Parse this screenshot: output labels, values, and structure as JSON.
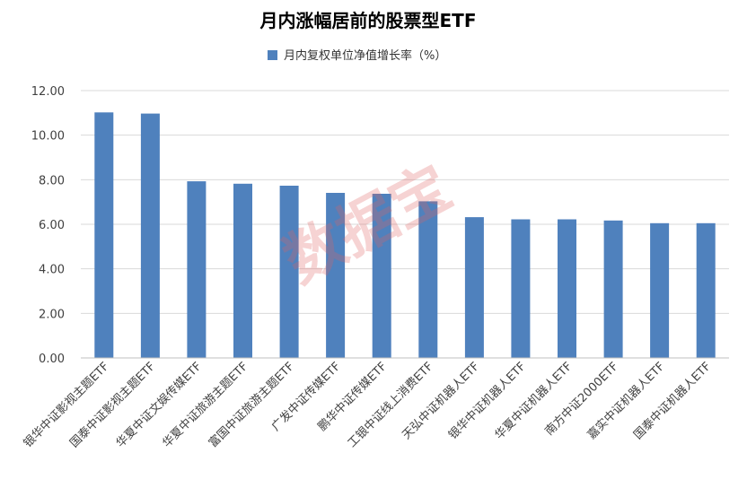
{
  "watermark": "数据宝",
  "chart_data": {
    "type": "bar",
    "title": "月内涨幅居前的股票型ETF",
    "legend": {
      "position": "top",
      "label": "月内复权单位净值增长率（%）"
    },
    "categories": [
      "银华中证影视主题ETF",
      "国泰中证影视主题ETF",
      "华夏中证文娱传媒ETF",
      "华夏中证旅游主题ETF",
      "富国中证旅游主题ETF",
      "广发中证传媒ETF",
      "鹏华中证传媒ETF",
      "工银中证线上消费ETF",
      "天弘中证机器人ETF",
      "银华中证机器人ETF",
      "华夏中证机器人ETF",
      "南方中证2000ETF",
      "嘉实中证机器人ETF",
      "国泰中证机器人ETF"
    ],
    "series": [
      {
        "name": "月内复权单位净值增长率（%）",
        "color": "#4f81bd",
        "values": [
          11.02,
          10.97,
          7.93,
          7.82,
          7.73,
          7.41,
          7.37,
          7.03,
          6.32,
          6.22,
          6.22,
          6.17,
          6.05,
          6.05
        ]
      }
    ],
    "ylim": [
      0,
      12
    ],
    "yticks": [
      "0.00",
      "2.00",
      "4.00",
      "6.00",
      "8.00",
      "10.00",
      "12.00"
    ],
    "grid": true
  }
}
